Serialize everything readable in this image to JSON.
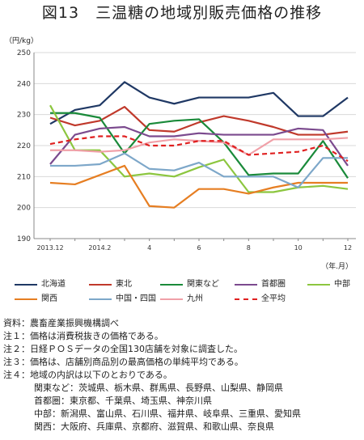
{
  "title": "図13　三温糖の地域別販売価格の推移",
  "ylabel": "（円/kg）",
  "xunit": "（年.月）",
  "chart_data": {
    "type": "line",
    "ylim": [
      190,
      250
    ],
    "yticks": [
      190,
      200,
      210,
      220,
      230,
      240,
      250
    ],
    "x": [
      "2013.12",
      "2014.1",
      "2014.2",
      "3",
      "4",
      "5",
      "6",
      "7",
      "8",
      "9",
      "10",
      "11",
      "12"
    ],
    "xtick_labels": [
      "2013.12",
      "",
      "2014.2",
      "",
      "4",
      "",
      "6",
      "",
      "8",
      "",
      "10",
      "",
      "12"
    ],
    "grid": "horizontal",
    "series": [
      {
        "name": "北海道",
        "color": "#1f3864",
        "dash": false,
        "values": [
          227,
          231.5,
          233,
          240.5,
          235.5,
          233.5,
          235.5,
          235.5,
          235.5,
          237,
          229.5,
          229.5,
          235.5
        ]
      },
      {
        "name": "東北",
        "color": "#c0392b",
        "dash": false,
        "values": [
          229,
          226.5,
          228,
          232.5,
          225,
          224.5,
          227.5,
          229.5,
          228,
          226,
          223.5,
          223.5,
          224.5
        ]
      },
      {
        "name": "関東など",
        "color": "#1a8a3a",
        "dash": false,
        "values": [
          230.5,
          230.5,
          229,
          217.5,
          227,
          228,
          228.5,
          221,
          210.5,
          211,
          211,
          221.5,
          209.5
        ]
      },
      {
        "name": "首都圏",
        "color": "#7b4a8e",
        "dash": false,
        "values": [
          214,
          223.5,
          225.5,
          226,
          223,
          223,
          224,
          223.5,
          223.5,
          223.5,
          225.5,
          225,
          213.5
        ]
      },
      {
        "name": "中部",
        "color": "#8cc63f",
        "dash": false,
        "values": [
          233,
          218.5,
          218.5,
          210,
          211,
          210,
          213,
          215.5,
          205,
          205,
          206.5,
          207,
          206
        ]
      },
      {
        "name": "関西",
        "color": "#e67e22",
        "dash": false,
        "values": [
          208,
          207.5,
          210.5,
          213.5,
          200.5,
          200,
          206,
          206,
          204.5,
          206.5,
          208,
          208,
          208
        ]
      },
      {
        "name": "中国・四国",
        "color": "#7da7c9",
        "dash": false,
        "values": [
          213.5,
          213.5,
          214,
          217.5,
          212.5,
          212,
          214.5,
          210,
          210,
          210,
          206.5,
          216,
          216
        ]
      },
      {
        "name": "九州",
        "color": "#f0a0a8",
        "dash": false,
        "values": [
          218.5,
          218.5,
          218,
          218.5,
          221,
          222,
          221.5,
          221,
          217,
          222,
          222,
          222,
          222.5
        ]
      },
      {
        "name": "全平均",
        "color": "#e02020",
        "dash": true,
        "values": [
          220.5,
          222,
          223,
          223,
          220,
          220,
          221.5,
          221.5,
          217,
          217.5,
          218,
          220,
          215
        ]
      }
    ]
  },
  "notes": [
    "資料：農畜産業振興機構調べ",
    "注１：価格は消費税抜きの価格である。",
    "注２：日経ＰＯＳデータの全国130店舗を対象に調査した。",
    "注３：価格は、店舗別商品別の最高価格の単純平均である。",
    "注４：地域の内訳は以下のとおりである。"
  ],
  "region_notes": [
    "関東など：茨城県、栃木県、群馬県、長野県、山梨県、静岡県",
    "首都圏：東京都、千葉県、埼玉県、神奈川県",
    "中部：新潟県、富山県、石川県、福井県、岐阜県、三重県、愛知県",
    "関西：大阪府、兵庫県、京都府、滋賀県、和歌山県、奈良県"
  ]
}
